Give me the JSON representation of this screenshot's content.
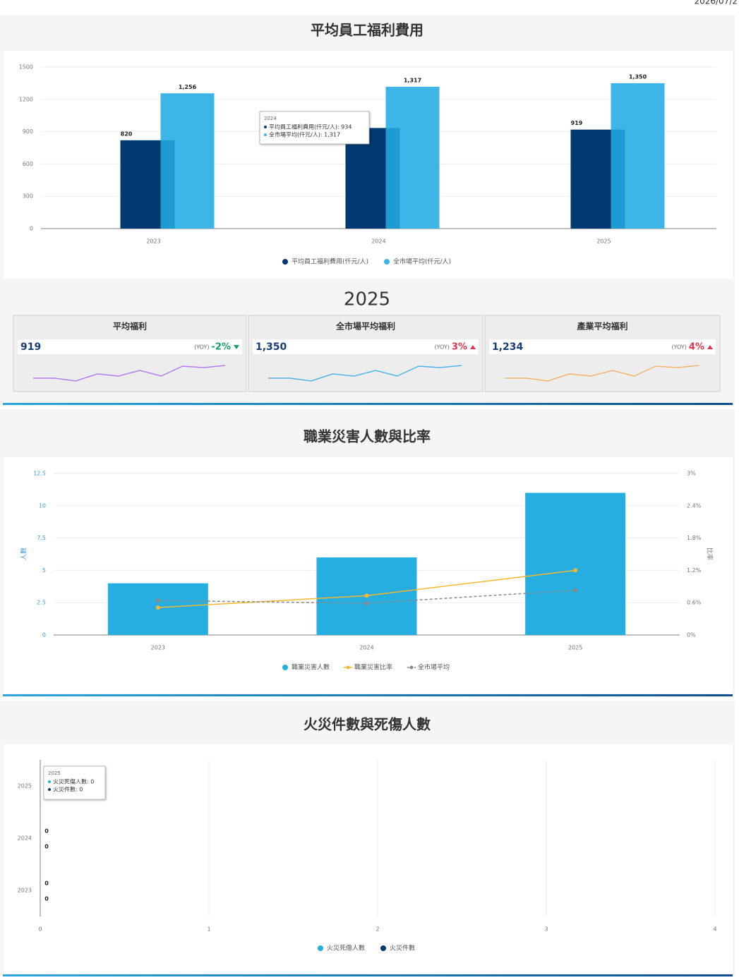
{
  "header": {
    "date": "2026/07/2"
  },
  "chart_data": [
    {
      "type": "bar",
      "title": "平均員工福利費用",
      "categories": [
        "2023",
        "2024",
        "2025"
      ],
      "series": [
        {
          "name": "平均員工福利費用(仟元/人)",
          "color": "#003a70",
          "values": [
            820,
            934,
            919
          ]
        },
        {
          "name": "全市場平均(仟元/人)",
          "color": "#3db5e6",
          "values": [
            1256,
            1317,
            1350
          ],
          "value_labels": [
            "1,256",
            "1,317",
            "1,350"
          ]
        }
      ],
      "ylim": [
        0,
        1500
      ],
      "yticks": [
        0,
        300,
        600,
        900,
        1200,
        1500
      ],
      "grid": true,
      "legend": "bottom",
      "tooltip": {
        "title": "2024",
        "lines": [
          "平均員工福利費用(仟元/人): 934",
          "全市場平均(仟元/人): 1,317"
        ]
      }
    },
    {
      "type": "combo",
      "title": "職業災害人數與比率",
      "categories": [
        "2023",
        "2024",
        "2025"
      ],
      "series": [
        {
          "name": "職業災害人數",
          "type": "bar",
          "color": "#27aee0",
          "values": [
            4,
            6,
            11
          ]
        },
        {
          "name": "職業災害比率",
          "type": "line",
          "axis": "y2",
          "color": "#f5b82e",
          "values": [
            0.51,
            0.73,
            1.2
          ]
        },
        {
          "name": "全市場平均",
          "type": "line",
          "axis": "y2",
          "color": "#888888",
          "dashed": true,
          "values": [
            0.64,
            0.59,
            0.83
          ]
        }
      ],
      "ylim": [
        0,
        12.5
      ],
      "yticks": [
        0,
        2.5,
        5,
        7.5,
        10,
        12.5
      ],
      "y2lim": [
        0,
        3
      ],
      "y2ticks": [
        {
          "value": 0,
          "label": "0%"
        },
        {
          "value": 0.6,
          "label": "0.6%"
        },
        {
          "value": 1.2,
          "label": "1.2%"
        },
        {
          "value": 1.8,
          "label": "1.8%"
        },
        {
          "value": 2.4,
          "label": "2.4%"
        },
        {
          "value": 3,
          "label": "3%"
        }
      ],
      "ylabel": "人數",
      "y2label": "比率",
      "grid": true,
      "legend": "bottom"
    },
    {
      "type": "hbar",
      "title": "火災件數與死傷人數",
      "categories": [
        "2023",
        "2024",
        "2025"
      ],
      "series": [
        {
          "name": "火災死傷人數",
          "color": "#27aee0",
          "values": [
            0,
            0,
            0
          ]
        },
        {
          "name": "火災件數",
          "color": "#003a70",
          "values": [
            0,
            0,
            0
          ]
        }
      ],
      "xlim": [
        0,
        4
      ],
      "xticks": [
        0,
        1,
        2,
        3,
        4
      ],
      "grid": true,
      "legend": "bottom",
      "tooltip": {
        "title": "2025",
        "lines": [
          "火災死傷人數: 0",
          "火災件數: 0"
        ]
      }
    }
  ],
  "kpi": {
    "year": "2025",
    "cards": [
      {
        "title": "平均福利",
        "value": "919",
        "yoy_prefix": "(YOY)",
        "yoy": "-2%",
        "trend": "down",
        "yoy_color": "#1a9e6b",
        "color": "#b57bee",
        "sparkline": [
          4,
          4,
          0,
          10,
          7,
          15,
          7,
          21,
          19,
          22
        ]
      },
      {
        "title": "全市場平均福利",
        "value": "1,350",
        "yoy_prefix": "(YOY)",
        "yoy": "3%",
        "trend": "up",
        "yoy_color": "#e0364a",
        "color": "#4db3e6",
        "sparkline": [
          4,
          4,
          0,
          10,
          7,
          15,
          7,
          21,
          19,
          22
        ]
      },
      {
        "title": "產業平均福利",
        "value": "1,234",
        "yoy_prefix": "(YOY)",
        "yoy": "4%",
        "trend": "up",
        "yoy_color": "#e0364a",
        "color": "#f5b36b",
        "sparkline": [
          4,
          4,
          0,
          10,
          7,
          15,
          7,
          21,
          19,
          22
        ]
      }
    ]
  }
}
